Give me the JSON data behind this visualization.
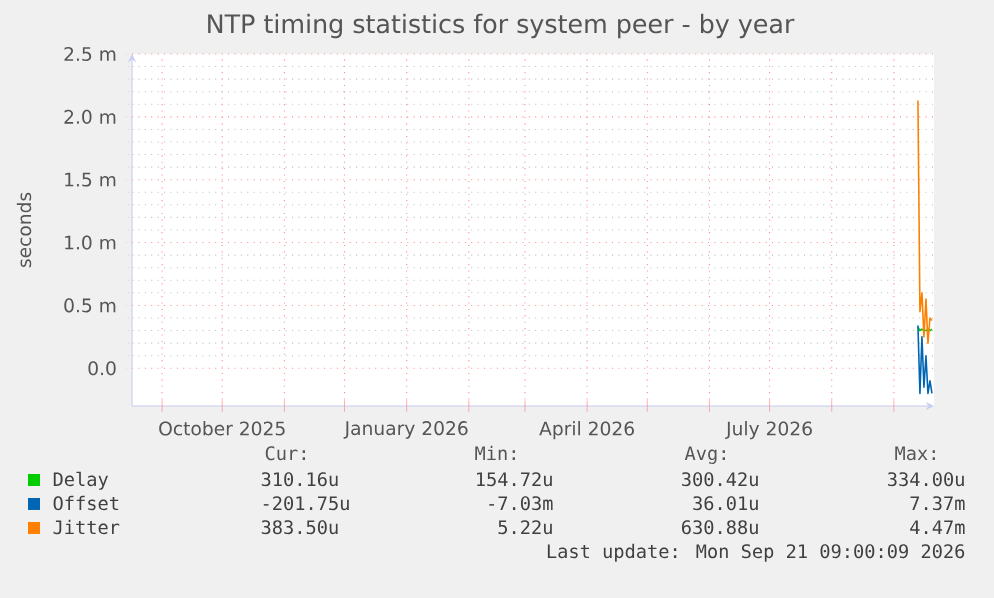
{
  "chart_data": {
    "type": "line",
    "title": "NTP timing statistics for system peer - by year",
    "ylabel": "seconds",
    "x": [
      "2026-09-13",
      "2026-09-14",
      "2026-09-15",
      "2026-09-16",
      "2026-09-17",
      "2026-09-18",
      "2026-09-19",
      "2026-09-20"
    ],
    "series": [
      {
        "name": "Delay",
        "color": "#00cc00",
        "values": [
          0.33,
          0.3,
          0.31,
          0.3,
          0.3,
          0.31,
          0.3,
          0.31
        ]
      },
      {
        "name": "Offset",
        "color": "#0066b3",
        "values": [
          0.34,
          -0.2,
          0.25,
          -0.15,
          0.1,
          -0.2,
          -0.1,
          -0.2
        ]
      },
      {
        "name": "Jitter",
        "color": "#ff8000",
        "values": [
          2.13,
          0.45,
          0.6,
          0.25,
          0.55,
          0.2,
          0.4,
          0.38
        ]
      }
    ],
    "xlim": [
      "2025-08-17",
      "2026-09-21"
    ],
    "ylim": [
      -0.3,
      2.5
    ],
    "xticks": [
      {
        "value": "2025-09-01",
        "label": null
      },
      {
        "value": "2025-10-01",
        "label": "October 2025"
      },
      {
        "value": "2025-11-01",
        "label": null
      },
      {
        "value": "2025-12-01",
        "label": null
      },
      {
        "value": "2026-01-01",
        "label": "January 2026"
      },
      {
        "value": "2026-02-01",
        "label": null
      },
      {
        "value": "2026-03-01",
        "label": null
      },
      {
        "value": "2026-04-01",
        "label": "April 2026"
      },
      {
        "value": "2026-05-01",
        "label": null
      },
      {
        "value": "2026-06-01",
        "label": null
      },
      {
        "value": "2026-07-01",
        "label": "July 2026"
      },
      {
        "value": "2026-08-01",
        "label": null
      },
      {
        "value": "2026-09-01",
        "label": null
      }
    ],
    "yticks": [
      {
        "value": 0,
        "label": "0.0"
      },
      {
        "value": 0.5,
        "label": "0.5 m"
      },
      {
        "value": 1.0,
        "label": "1.0 m"
      },
      {
        "value": 1.5,
        "label": "1.5 m"
      },
      {
        "value": 2.0,
        "label": "2.0 m"
      },
      {
        "value": 2.5,
        "label": "2.5 m"
      }
    ],
    "grid": true,
    "legend": "bottom",
    "annotations": [
      "Cur:",
      "Min:",
      "Avg:",
      "Max:",
      "310.16u",
      "154.72u",
      "300.42u",
      "334.00u",
      "-201.75u",
      "-7.03m",
      "36.01u",
      "7.37m",
      "383.50u",
      "5.22u",
      "630.88u",
      "4.47m",
      "Last update: Mon Sep 21 09:00:09 2026"
    ]
  }
}
